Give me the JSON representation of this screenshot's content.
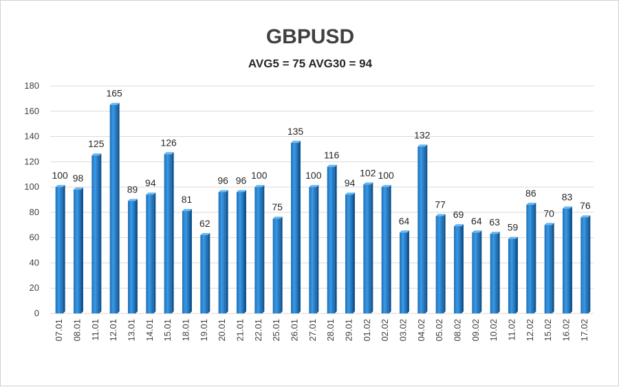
{
  "chart_data": {
    "type": "bar",
    "title": "GBPUSD",
    "subtitle": "AVG5 = 75 AVG30 = 94",
    "xlabel": "",
    "ylabel": "",
    "ylim": [
      0,
      180
    ],
    "yticks": [
      "0",
      "20",
      "40",
      "60",
      "80",
      "100",
      "120",
      "140",
      "160",
      "180"
    ],
    "grid": true,
    "bar_color": "#2e8fd8",
    "categories": [
      "07.01",
      "08.01",
      "11.01",
      "12.01",
      "13.01",
      "14.01",
      "15.01",
      "18.01",
      "19.01",
      "20.01",
      "21.01",
      "22.01",
      "25.01",
      "26.01",
      "27.01",
      "28.01",
      "29.01",
      "01.02",
      "02.02",
      "03.02",
      "04.02",
      "05.02",
      "08.02",
      "09.02",
      "10.02",
      "11.02",
      "12.02",
      "15.02",
      "16.02",
      "17.02"
    ],
    "values": [
      100,
      98,
      125,
      165,
      89,
      94,
      126,
      81,
      62,
      96,
      96,
      100,
      75,
      135,
      100,
      116,
      94,
      102,
      100,
      64,
      132,
      77,
      69,
      64,
      63,
      59,
      86,
      70,
      83,
      76
    ]
  }
}
